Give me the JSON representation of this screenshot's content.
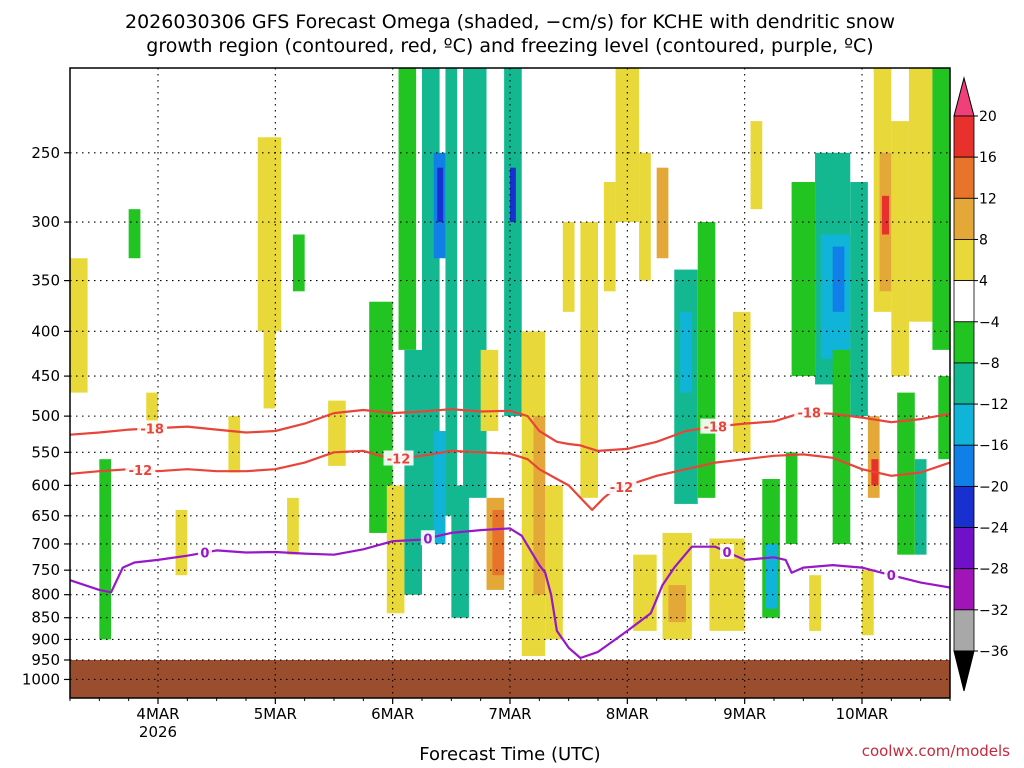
{
  "title_line1": "2026030306 GFS Forecast Omega (shaded, −cm/s) for KCHE with dendritic snow",
  "title_line2": "growth region (contoured, red, ºC) and freezing level (contoured, purple, ºC)",
  "xlabel": "Forecast Time (UTC)",
  "credit": "coolwx.com/models",
  "chart_data": {
    "type": "heatmap",
    "x_axis": {
      "min": 3.25,
      "max": 10.75,
      "ticks": [
        {
          "day": 4,
          "label": "4MAR",
          "sublabel": "2026"
        },
        {
          "day": 5,
          "label": "5MAR",
          "sublabel": ""
        },
        {
          "day": 6,
          "label": "6MAR",
          "sublabel": ""
        },
        {
          "day": 7,
          "label": "7MAR",
          "sublabel": ""
        },
        {
          "day": 8,
          "label": "8MAR",
          "sublabel": ""
        },
        {
          "day": 9,
          "label": "9MAR",
          "sublabel": ""
        },
        {
          "day": 10,
          "label": "10MAR",
          "sublabel": ""
        }
      ]
    },
    "y_axis": {
      "scale": "log",
      "inverted": true,
      "range": [
        200,
        1050
      ],
      "ticks": [
        250,
        300,
        350,
        400,
        450,
        500,
        550,
        600,
        650,
        700,
        750,
        800,
        850,
        900,
        950,
        1000
      ]
    },
    "grid": true,
    "colorbar": {
      "labels": [
        "20",
        "16",
        "12",
        "8",
        "4",
        "−4",
        "−8",
        "−12",
        "−16",
        "−20",
        "−24",
        "−28",
        "−32",
        "−36"
      ],
      "colors": [
        "#f0407a",
        "#e8302c",
        "#e8742c",
        "#e4a838",
        "#e8d83a",
        "#ffffff",
        "#22c422",
        "#14b890",
        "#10b4d8",
        "#1080e8",
        "#1830d0",
        "#7010c8",
        "#a014b8",
        "#a8a8a8",
        "#000000"
      ]
    },
    "ground_color": "#9a4e2e",
    "omega_cells": [
      {
        "t0": 3.25,
        "t1": 3.4,
        "p0": 330,
        "p1": 470,
        "v": 5
      },
      {
        "t0": 3.5,
        "t1": 3.6,
        "p0": 560,
        "p1": 900,
        "v": -6
      },
      {
        "t0": 3.75,
        "t1": 3.85,
        "p0": 290,
        "p1": 330,
        "v": -6
      },
      {
        "t0": 3.9,
        "t1": 4.0,
        "p0": 470,
        "p1": 520,
        "v": 5
      },
      {
        "t0": 4.15,
        "t1": 4.25,
        "p0": 640,
        "p1": 760,
        "v": 5
      },
      {
        "t0": 4.6,
        "t1": 4.7,
        "p0": 500,
        "p1": 580,
        "v": 5
      },
      {
        "t0": 4.85,
        "t1": 5.05,
        "p0": 240,
        "p1": 400,
        "v": 6
      },
      {
        "t0": 4.9,
        "t1": 5.0,
        "p0": 400,
        "p1": 490,
        "v": 5
      },
      {
        "t0": 5.1,
        "t1": 5.2,
        "p0": 620,
        "p1": 720,
        "v": 5
      },
      {
        "t0": 5.15,
        "t1": 5.25,
        "p0": 310,
        "p1": 360,
        "v": -6
      },
      {
        "t0": 5.45,
        "t1": 5.6,
        "p0": 480,
        "p1": 570,
        "v": 5
      },
      {
        "t0": 5.8,
        "t1": 6.0,
        "p0": 370,
        "p1": 680,
        "v": -7
      },
      {
        "t0": 5.95,
        "t1": 6.1,
        "p0": 600,
        "p1": 840,
        "v": 5
      },
      {
        "t0": 6.05,
        "t1": 6.2,
        "p0": 200,
        "p1": 420,
        "v": -7
      },
      {
        "t0": 6.1,
        "t1": 6.25,
        "p0": 420,
        "p1": 800,
        "v": -8
      },
      {
        "t0": 6.25,
        "t1": 6.4,
        "p0": 200,
        "p1": 700,
        "v": -9
      },
      {
        "t0": 6.35,
        "t1": 6.45,
        "p0": 250,
        "p1": 330,
        "v": -18
      },
      {
        "t0": 6.38,
        "t1": 6.43,
        "p0": 260,
        "p1": 300,
        "v": -22
      },
      {
        "t0": 6.35,
        "t1": 6.45,
        "p0": 520,
        "p1": 700,
        "v": -14
      },
      {
        "t0": 6.45,
        "t1": 6.55,
        "p0": 200,
        "p1": 650,
        "v": -10
      },
      {
        "t0": 6.5,
        "t1": 6.65,
        "p0": 600,
        "p1": 850,
        "v": -8
      },
      {
        "t0": 6.6,
        "t1": 6.8,
        "p0": 200,
        "p1": 620,
        "v": -8
      },
      {
        "t0": 6.75,
        "t1": 6.9,
        "p0": 420,
        "p1": 520,
        "v": 5
      },
      {
        "t0": 6.8,
        "t1": 6.95,
        "p0": 620,
        "p1": 790,
        "v": 10
      },
      {
        "t0": 6.85,
        "t1": 6.95,
        "p0": 640,
        "p1": 760,
        "v": 13
      },
      {
        "t0": 6.95,
        "t1": 7.1,
        "p0": 200,
        "p1": 500,
        "v": -9
      },
      {
        "t0": 7.0,
        "t1": 7.05,
        "p0": 260,
        "p1": 300,
        "v": -20
      },
      {
        "t0": 7.1,
        "t1": 7.3,
        "p0": 400,
        "p1": 940,
        "v": 6
      },
      {
        "t0": 7.2,
        "t1": 7.3,
        "p0": 500,
        "p1": 800,
        "v": 10
      },
      {
        "t0": 7.3,
        "t1": 7.45,
        "p0": 600,
        "p1": 900,
        "v": 6
      },
      {
        "t0": 7.45,
        "t1": 7.55,
        "p0": 300,
        "p1": 380,
        "v": 5
      },
      {
        "t0": 7.6,
        "t1": 7.75,
        "p0": 300,
        "p1": 620,
        "v": 5
      },
      {
        "t0": 7.8,
        "t1": 7.9,
        "p0": 270,
        "p1": 360,
        "v": 5
      },
      {
        "t0": 7.9,
        "t1": 8.1,
        "p0": 200,
        "p1": 300,
        "v": 6
      },
      {
        "t0": 8.05,
        "t1": 8.25,
        "p0": 720,
        "p1": 880,
        "v": 6
      },
      {
        "t0": 8.1,
        "t1": 8.2,
        "p0": 250,
        "p1": 350,
        "v": 5
      },
      {
        "t0": 8.25,
        "t1": 8.35,
        "p0": 260,
        "p1": 330,
        "v": 10
      },
      {
        "t0": 8.3,
        "t1": 8.55,
        "p0": 680,
        "p1": 900,
        "v": 6
      },
      {
        "t0": 8.35,
        "t1": 8.5,
        "p0": 780,
        "p1": 860,
        "v": 10
      },
      {
        "t0": 8.4,
        "t1": 8.6,
        "p0": 340,
        "p1": 630,
        "v": -8
      },
      {
        "t0": 8.45,
        "t1": 8.55,
        "p0": 380,
        "p1": 470,
        "v": -13
      },
      {
        "t0": 8.6,
        "t1": 8.75,
        "p0": 300,
        "p1": 620,
        "v": -7
      },
      {
        "t0": 8.7,
        "t1": 9.0,
        "p0": 690,
        "p1": 880,
        "v": 5
      },
      {
        "t0": 8.9,
        "t1": 9.05,
        "p0": 380,
        "p1": 550,
        "v": 5
      },
      {
        "t0": 9.05,
        "t1": 9.15,
        "p0": 230,
        "p1": 290,
        "v": 5
      },
      {
        "t0": 9.15,
        "t1": 9.3,
        "p0": 590,
        "p1": 850,
        "v": -7
      },
      {
        "t0": 9.18,
        "t1": 9.28,
        "p0": 700,
        "p1": 830,
        "v": -13
      },
      {
        "t0": 9.35,
        "t1": 9.45,
        "p0": 550,
        "p1": 700,
        "v": -6
      },
      {
        "t0": 9.4,
        "t1": 9.6,
        "p0": 270,
        "p1": 450,
        "v": -7
      },
      {
        "t0": 9.55,
        "t1": 9.65,
        "p0": 760,
        "p1": 880,
        "v": 6
      },
      {
        "t0": 9.6,
        "t1": 9.9,
        "p0": 250,
        "p1": 460,
        "v": -9
      },
      {
        "t0": 9.65,
        "t1": 9.9,
        "p0": 310,
        "p1": 430,
        "v": -13
      },
      {
        "t0": 9.75,
        "t1": 9.85,
        "p0": 320,
        "p1": 380,
        "v": -17
      },
      {
        "t0": 9.9,
        "t1": 10.05,
        "p0": 270,
        "p1": 500,
        "v": -8
      },
      {
        "t0": 9.75,
        "t1": 9.9,
        "p0": 420,
        "p1": 700,
        "v": -7
      },
      {
        "t0": 10.0,
        "t1": 10.1,
        "p0": 750,
        "p1": 890,
        "v": 5
      },
      {
        "t0": 10.05,
        "t1": 10.15,
        "p0": 500,
        "p1": 620,
        "v": 9
      },
      {
        "t0": 10.08,
        "t1": 10.14,
        "p0": 560,
        "p1": 600,
        "v": 17
      },
      {
        "t0": 10.1,
        "t1": 10.25,
        "p0": 200,
        "p1": 380,
        "v": 6
      },
      {
        "t0": 10.15,
        "t1": 10.25,
        "p0": 250,
        "p1": 360,
        "v": 10
      },
      {
        "t0": 10.17,
        "t1": 10.23,
        "p0": 280,
        "p1": 310,
        "v": 17
      },
      {
        "t0": 10.25,
        "t1": 10.4,
        "p0": 230,
        "p1": 450,
        "v": 6
      },
      {
        "t0": 10.3,
        "t1": 10.45,
        "p0": 470,
        "p1": 720,
        "v": -7
      },
      {
        "t0": 10.4,
        "t1": 10.6,
        "p0": 200,
        "p1": 390,
        "v": 6
      },
      {
        "t0": 10.45,
        "t1": 10.55,
        "p0": 560,
        "p1": 720,
        "v": -11
      },
      {
        "t0": 10.6,
        "t1": 10.75,
        "p0": 200,
        "p1": 420,
        "v": -6
      },
      {
        "t0": 10.65,
        "t1": 10.75,
        "p0": 450,
        "p1": 560,
        "v": -6
      }
    ],
    "isotherms": [
      {
        "label": "-18",
        "color": "#e8443a",
        "label_at": [
          3.95,
          8.75,
          9.55
        ],
        "points": [
          [
            3.25,
            525
          ],
          [
            3.5,
            522
          ],
          [
            3.75,
            518
          ],
          [
            4.0,
            516
          ],
          [
            4.25,
            514
          ],
          [
            4.5,
            518
          ],
          [
            4.75,
            522
          ],
          [
            5.0,
            520
          ],
          [
            5.25,
            510
          ],
          [
            5.5,
            496
          ],
          [
            5.75,
            492
          ],
          [
            6.0,
            496
          ],
          [
            6.25,
            494
          ],
          [
            6.5,
            491
          ],
          [
            6.75,
            494
          ],
          [
            7.0,
            493
          ],
          [
            7.15,
            500
          ],
          [
            7.25,
            520
          ],
          [
            7.4,
            535
          ],
          [
            7.5,
            538
          ],
          [
            7.6,
            540
          ],
          [
            7.75,
            548
          ],
          [
            8.0,
            545
          ],
          [
            8.25,
            535
          ],
          [
            8.5,
            520
          ],
          [
            8.75,
            514
          ],
          [
            9.0,
            510
          ],
          [
            9.25,
            507
          ],
          [
            9.5,
            495
          ],
          [
            9.75,
            497
          ],
          [
            10.0,
            502
          ],
          [
            10.25,
            508
          ],
          [
            10.5,
            504
          ],
          [
            10.75,
            497
          ]
        ]
      },
      {
        "label": "-12",
        "color": "#e8443a",
        "label_at": [
          3.85,
          6.05,
          7.95
        ],
        "points": [
          [
            3.25,
            582
          ],
          [
            3.5,
            578
          ],
          [
            3.75,
            575
          ],
          [
            4.0,
            578
          ],
          [
            4.25,
            575
          ],
          [
            4.5,
            578
          ],
          [
            4.75,
            578
          ],
          [
            5.0,
            575
          ],
          [
            5.25,
            565
          ],
          [
            5.5,
            550
          ],
          [
            5.75,
            548
          ],
          [
            6.0,
            560
          ],
          [
            6.25,
            555
          ],
          [
            6.5,
            548
          ],
          [
            6.75,
            550
          ],
          [
            7.0,
            552
          ],
          [
            7.15,
            560
          ],
          [
            7.25,
            575
          ],
          [
            7.4,
            590
          ],
          [
            7.5,
            600
          ],
          [
            7.6,
            620
          ],
          [
            7.7,
            640
          ],
          [
            7.8,
            620
          ],
          [
            7.9,
            605
          ],
          [
            8.0,
            600
          ],
          [
            8.25,
            585
          ],
          [
            8.5,
            575
          ],
          [
            8.75,
            565
          ],
          [
            9.0,
            560
          ],
          [
            9.25,
            555
          ],
          [
            9.5,
            553
          ],
          [
            9.75,
            558
          ],
          [
            10.0,
            575
          ],
          [
            10.25,
            585
          ],
          [
            10.5,
            580
          ],
          [
            10.75,
            565
          ]
        ]
      },
      {
        "label": "0",
        "color": "#9818c8",
        "label_at": [
          4.4,
          6.3,
          8.85,
          10.25
        ],
        "points": [
          [
            3.25,
            770
          ],
          [
            3.5,
            790
          ],
          [
            3.6,
            795
          ],
          [
            3.7,
            745
          ],
          [
            3.8,
            735
          ],
          [
            4.0,
            730
          ],
          [
            4.25,
            722
          ],
          [
            4.5,
            712
          ],
          [
            4.75,
            716
          ],
          [
            5.0,
            715
          ],
          [
            5.25,
            718
          ],
          [
            5.5,
            720
          ],
          [
            5.75,
            710
          ],
          [
            6.0,
            695
          ],
          [
            6.25,
            692
          ],
          [
            6.5,
            680
          ],
          [
            6.75,
            675
          ],
          [
            7.0,
            672
          ],
          [
            7.1,
            685
          ],
          [
            7.25,
            740
          ],
          [
            7.3,
            755
          ],
          [
            7.35,
            800
          ],
          [
            7.4,
            880
          ],
          [
            7.5,
            920
          ],
          [
            7.6,
            945
          ],
          [
            7.75,
            930
          ],
          [
            8.0,
            880
          ],
          [
            8.2,
            840
          ],
          [
            8.3,
            780
          ],
          [
            8.4,
            745
          ],
          [
            8.55,
            705
          ],
          [
            8.75,
            705
          ],
          [
            9.0,
            730
          ],
          [
            9.25,
            725
          ],
          [
            9.35,
            730
          ],
          [
            9.4,
            755
          ],
          [
            9.5,
            745
          ],
          [
            9.75,
            740
          ],
          [
            10.0,
            745
          ],
          [
            10.25,
            760
          ],
          [
            10.5,
            775
          ],
          [
            10.75,
            785
          ]
        ]
      }
    ]
  }
}
